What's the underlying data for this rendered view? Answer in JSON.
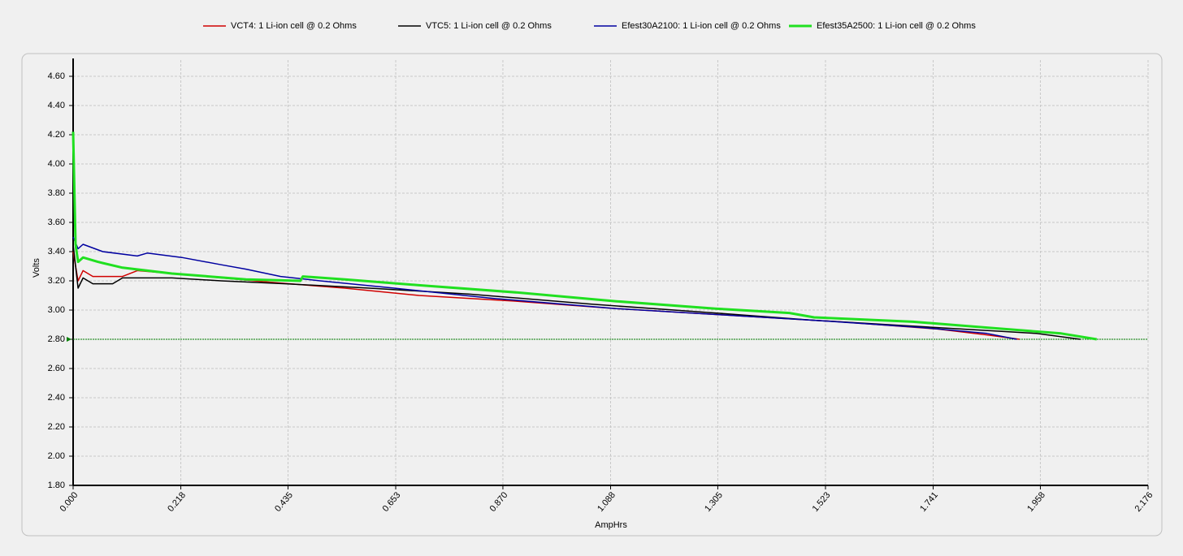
{
  "chart_data": {
    "type": "line",
    "x_label": "AmpHrs",
    "y_label": "Volts",
    "xlim": [
      0,
      2.176
    ],
    "ylim": [
      1.8,
      4.6
    ],
    "xticks": [
      {
        "value": 0,
        "label": "0.000"
      },
      0.218,
      0.435,
      0.653,
      {
        "value": 0.87,
        "label": "0.870"
      },
      1.088,
      1.305,
      1.523,
      1.741,
      1.958,
      2.176
    ],
    "yticks": [
      {
        "value": 1.8,
        "label": "1.80"
      },
      {
        "value": 2.0,
        "label": "2.00"
      },
      {
        "value": 2.2,
        "label": "2.20"
      },
      {
        "value": 2.4,
        "label": "2.40"
      },
      {
        "value": 2.6,
        "label": "2.60"
      },
      {
        "value": 2.8,
        "label": "2.80"
      },
      {
        "value": 3.0,
        "label": "3.00"
      },
      {
        "value": 3.2,
        "label": "3.20"
      },
      {
        "value": 3.4,
        "label": "3.40"
      },
      {
        "value": 3.6,
        "label": "3.60"
      },
      {
        "value": 3.8,
        "label": "3.80"
      },
      {
        "value": 4.0,
        "label": "4.00"
      },
      {
        "value": 4.2,
        "label": "4.20"
      },
      {
        "value": 4.4,
        "label": "4.40"
      },
      {
        "value": 4.6,
        "label": "4.60"
      }
    ],
    "grid": true,
    "reference_line": 2.8,
    "reference_color": "#008000",
    "series": [
      {
        "name": "VCT4: 1 Li-ion cell @ 0.2 Ohms",
        "color": "#d00000",
        "width": 1.5,
        "x": [
          0,
          0.01,
          0.02,
          0.04,
          0.1,
          0.13,
          0.2,
          0.3,
          0.4,
          0.55,
          0.7,
          0.9,
          1.1,
          1.35,
          1.55,
          1.75,
          1.85,
          1.916
        ],
        "values": [
          3.4,
          3.2,
          3.27,
          3.23,
          3.23,
          3.27,
          3.25,
          3.22,
          3.19,
          3.15,
          3.1,
          3.06,
          3.01,
          2.96,
          2.92,
          2.87,
          2.83,
          2.8
        ]
      },
      {
        "name": "VTC5: 1 Li-ion cell @ 0.2 Ohms",
        "color": "#000000",
        "width": 1.5,
        "x": [
          0,
          0.01,
          0.02,
          0.04,
          0.08,
          0.1,
          0.2,
          0.3,
          0.43,
          0.6,
          0.8,
          1.05,
          1.3,
          1.5,
          1.75,
          1.95,
          2.039
        ],
        "values": [
          3.45,
          3.15,
          3.22,
          3.18,
          3.18,
          3.22,
          3.22,
          3.2,
          3.18,
          3.15,
          3.11,
          3.04,
          2.98,
          2.93,
          2.88,
          2.84,
          2.8
        ]
      },
      {
        "name": "Efest30A2100: 1 Li-ion cell @ 0.2 Ohms",
        "color": "#0000a0",
        "width": 1.5,
        "x": [
          0,
          0.01,
          0.02,
          0.06,
          0.13,
          0.15,
          0.22,
          0.3,
          0.35,
          0.42,
          0.5,
          0.65,
          0.85,
          1.1,
          1.35,
          1.5,
          1.72,
          1.85,
          1.91
        ],
        "values": [
          3.5,
          3.42,
          3.45,
          3.4,
          3.37,
          3.39,
          3.36,
          3.31,
          3.28,
          3.23,
          3.2,
          3.15,
          3.08,
          3.01,
          2.96,
          2.93,
          2.88,
          2.84,
          2.8
        ]
      },
      {
        "name": "Efest35A2500: 1 Li-ion cell @ 0.2 Ohms",
        "color": "#20e020",
        "width": 3,
        "x": [
          0,
          0.005,
          0.01,
          0.02,
          0.05,
          0.1,
          0.2,
          0.35,
          0.46,
          0.465,
          0.55,
          0.7,
          0.9,
          1.1,
          1.3,
          1.45,
          1.5,
          1.7,
          1.85,
          2.0,
          2.072
        ],
        "values": [
          4.22,
          3.45,
          3.33,
          3.36,
          3.33,
          3.29,
          3.25,
          3.21,
          3.2,
          3.23,
          3.21,
          3.17,
          3.12,
          3.06,
          3.01,
          2.98,
          2.95,
          2.92,
          2.88,
          2.84,
          2.8
        ]
      }
    ]
  }
}
